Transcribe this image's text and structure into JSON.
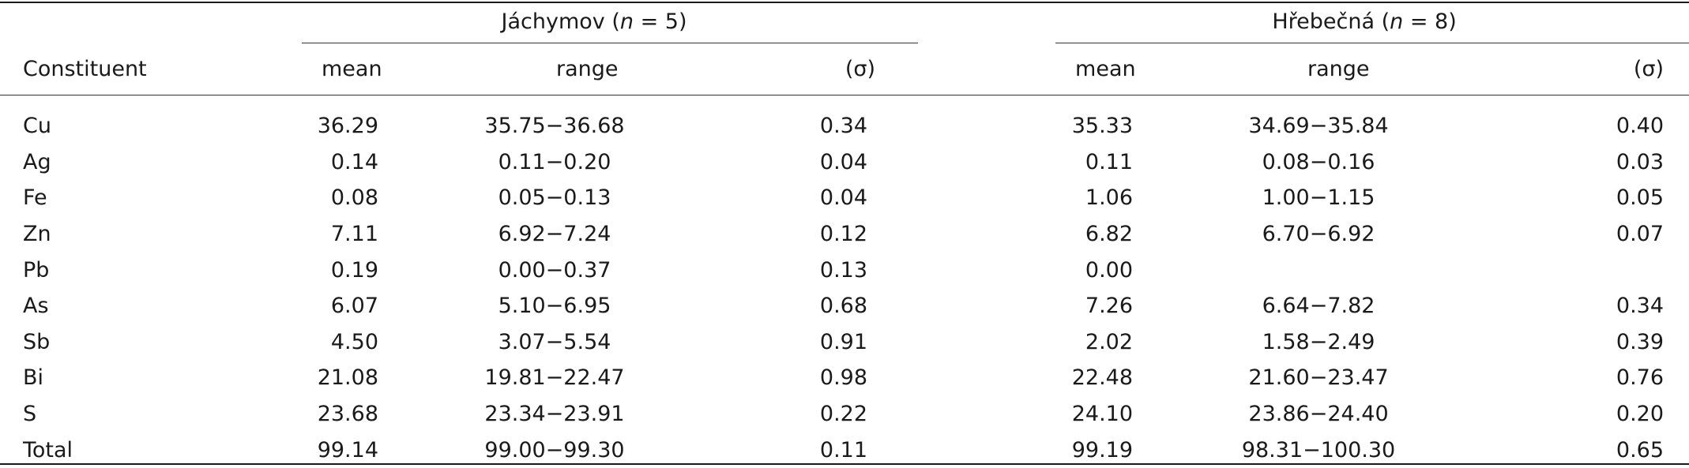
{
  "columns": {
    "constituent": "Constituent",
    "mean": "mean",
    "range": "range",
    "sigma": "(σ)"
  },
  "groups": [
    {
      "name": "Jáchymov",
      "n_label": "n",
      "n_eq": " = 5"
    },
    {
      "name": "Hřebečná",
      "n_label": "n",
      "n_eq": " = 8"
    }
  ],
  "rows": [
    {
      "constituent": "Cu",
      "g1": {
        "mean": "36.29",
        "range": "35.75−36.68",
        "sigma": "0.34"
      },
      "g2": {
        "mean": "35.33",
        "range": "34.69−35.84",
        "sigma": "0.40"
      }
    },
    {
      "constituent": "Ag",
      "g1": {
        "mean": "0.14",
        "range": "0.11−0.20",
        "sigma": "0.04"
      },
      "g2": {
        "mean": "0.11",
        "range": "0.08−0.16",
        "sigma": "0.03"
      }
    },
    {
      "constituent": "Fe",
      "g1": {
        "mean": "0.08",
        "range": "0.05−0.13",
        "sigma": "0.04"
      },
      "g2": {
        "mean": "1.06",
        "range": "1.00−1.15",
        "sigma": "0.05"
      }
    },
    {
      "constituent": "Zn",
      "g1": {
        "mean": "7.11",
        "range": "6.92−7.24",
        "sigma": "0.12"
      },
      "g2": {
        "mean": "6.82",
        "range": "6.70−6.92",
        "sigma": "0.07"
      }
    },
    {
      "constituent": "Pb",
      "g1": {
        "mean": "0.19",
        "range": "0.00−0.37",
        "sigma": "0.13"
      },
      "g2": {
        "mean": "0.00",
        "range": "",
        "sigma": ""
      }
    },
    {
      "constituent": "As",
      "g1": {
        "mean": "6.07",
        "range": "5.10−6.95",
        "sigma": "0.68"
      },
      "g2": {
        "mean": "7.26",
        "range": "6.64−7.82",
        "sigma": "0.34"
      }
    },
    {
      "constituent": "Sb",
      "g1": {
        "mean": "4.50",
        "range": "3.07−5.54",
        "sigma": "0.91"
      },
      "g2": {
        "mean": "2.02",
        "range": "1.58−2.49",
        "sigma": "0.39"
      }
    },
    {
      "constituent": "Bi",
      "g1": {
        "mean": "21.08",
        "range": "19.81−22.47",
        "sigma": "0.98"
      },
      "g2": {
        "mean": "22.48",
        "range": "21.60−23.47",
        "sigma": "0.76"
      }
    },
    {
      "constituent": "S",
      "g1": {
        "mean": "23.68",
        "range": "23.34−23.91",
        "sigma": "0.22"
      },
      "g2": {
        "mean": "24.10",
        "range": "23.86−24.40",
        "sigma": "0.20"
      }
    },
    {
      "constituent": "Total",
      "g1": {
        "mean": "99.14",
        "range": "99.00−99.30",
        "sigma": "0.11"
      },
      "g2": {
        "mean": "99.19",
        "range": "98.31−100.30",
        "sigma": "0.65"
      }
    }
  ]
}
